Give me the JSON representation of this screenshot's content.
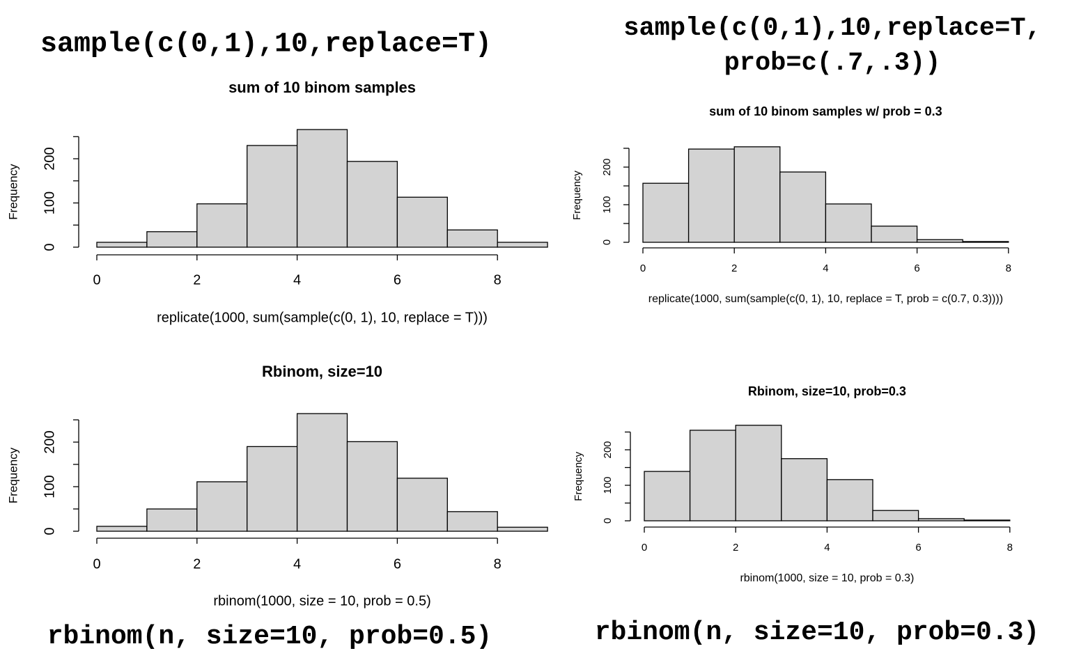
{
  "chart_data": [
    {
      "type": "histogram",
      "caption": [
        "sample(c(0,1),10,replace=T)"
      ],
      "title": "sum of 10 binom samples",
      "xlabel": "replicate(1000, sum(sample(c(0, 1), 10, replace = T)))",
      "ylabel": "Frequency",
      "bins": [
        0,
        1,
        2,
        3,
        4,
        5,
        6,
        7,
        8,
        9
      ],
      "values": [
        11,
        35,
        98,
        230,
        266,
        194,
        113,
        39,
        11
      ],
      "color": "#d3d3d3",
      "xlim": [
        0,
        9
      ],
      "xticks": [
        0,
        2,
        4,
        6,
        8
      ],
      "ylim": [
        0,
        250
      ],
      "yticks": [
        0,
        100,
        200
      ],
      "minor_yticks": [
        50,
        150,
        250
      ]
    },
    {
      "type": "histogram",
      "caption": [
        "sample(c(0,1),10,replace=T,",
        "prob=c(.7,.3))"
      ],
      "title": "sum of 10 binom samples w/ prob = 0.3",
      "xlabel": "replicate(1000, sum(sample(c(0, 1), 10, replace = T, prob = c(0.7, 0.3))))",
      "ylabel": "Frequency",
      "bins": [
        0,
        1,
        2,
        3,
        4,
        5,
        6,
        7,
        8
      ],
      "values": [
        157,
        248,
        254,
        187,
        102,
        43,
        7,
        2
      ],
      "color": "#d3d3d3",
      "xlim": [
        0,
        8
      ],
      "xticks": [
        0,
        2,
        4,
        6,
        8
      ],
      "ylim": [
        0,
        250
      ],
      "yticks": [
        0,
        100,
        200
      ],
      "minor_yticks": [
        50,
        150,
        250
      ]
    },
    {
      "type": "histogram",
      "caption": [
        "rbinom(n, size=10, prob=0.5)"
      ],
      "title": "Rbinom, size=10",
      "xlabel": "rbinom(1000, size = 10, prob = 0.5)",
      "ylabel": "Frequency",
      "bins": [
        0,
        1,
        2,
        3,
        4,
        5,
        6,
        7,
        8,
        9
      ],
      "values": [
        11,
        50,
        111,
        190,
        264,
        201,
        119,
        44,
        9
      ],
      "color": "#d3d3d3",
      "xlim": [
        0,
        9
      ],
      "xticks": [
        0,
        2,
        4,
        6,
        8
      ],
      "ylim": [
        0,
        250
      ],
      "yticks": [
        0,
        100,
        200
      ],
      "minor_yticks": [
        50,
        150,
        250
      ]
    },
    {
      "type": "histogram",
      "caption": [
        "rbinom(n, size=10, prob=0.3)"
      ],
      "title": "Rbinom, size=10, prob=0.3",
      "xlabel": "rbinom(1000, size = 10, prob = 0.3)",
      "ylabel": "Frequency",
      "bins": [
        0,
        1,
        2,
        3,
        4,
        5,
        6,
        7,
        8
      ],
      "values": [
        139,
        255,
        269,
        175,
        116,
        29,
        6,
        2
      ],
      "color": "#d3d3d3",
      "xlim": [
        0,
        8
      ],
      "xticks": [
        0,
        2,
        4,
        6,
        8
      ],
      "ylim": [
        0,
        250
      ],
      "yticks": [
        0,
        100,
        200
      ],
      "minor_yticks": [
        50,
        150,
        250
      ]
    }
  ]
}
